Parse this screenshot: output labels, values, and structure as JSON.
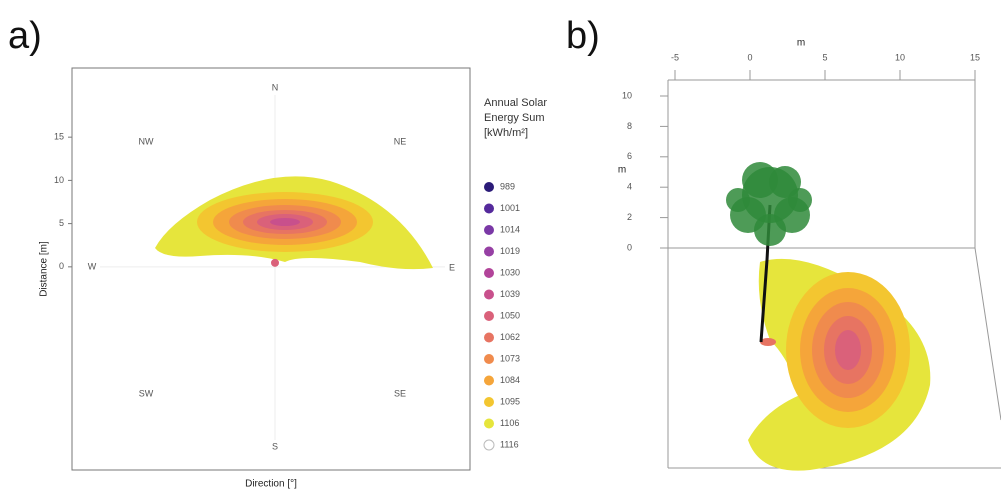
{
  "chart_data": [
    {
      "type": "contour",
      "title": "a)",
      "xlabel": "Direction [°]",
      "ylabel": "Distance [m]",
      "ylim": [
        -23.5,
        23
      ],
      "yticks": [
        0,
        5,
        10,
        15
      ],
      "directions": [
        "N",
        "NE",
        "E",
        "SE",
        "S",
        "SW",
        "W",
        "NW"
      ],
      "legend_title": "Annual Solar Energy Sum [kWh/m²]",
      "levels": [
        989,
        1001,
        1014,
        1019,
        1030,
        1039,
        1050,
        1062,
        1073,
        1084,
        1095,
        1106,
        1116
      ],
      "colors": [
        "#2b1b78",
        "#552a9c",
        "#7a38a6",
        "#9640a4",
        "#b2449a",
        "#c8508c",
        "#da617a",
        "#e77462",
        "#f08b4d",
        "#f5a53a",
        "#f3c630",
        "#e6e53c",
        "#ffffff"
      ]
    },
    {
      "type": "scene3d",
      "title": "b)",
      "xlabel": "m",
      "zlabel": "m",
      "xlim": [
        -5.5,
        15
      ],
      "xticks": [
        -5,
        0,
        5,
        10,
        15
      ],
      "zlim": [
        0,
        10
      ],
      "zticks": [
        0,
        2,
        4,
        6,
        8,
        10
      ]
    }
  ]
}
